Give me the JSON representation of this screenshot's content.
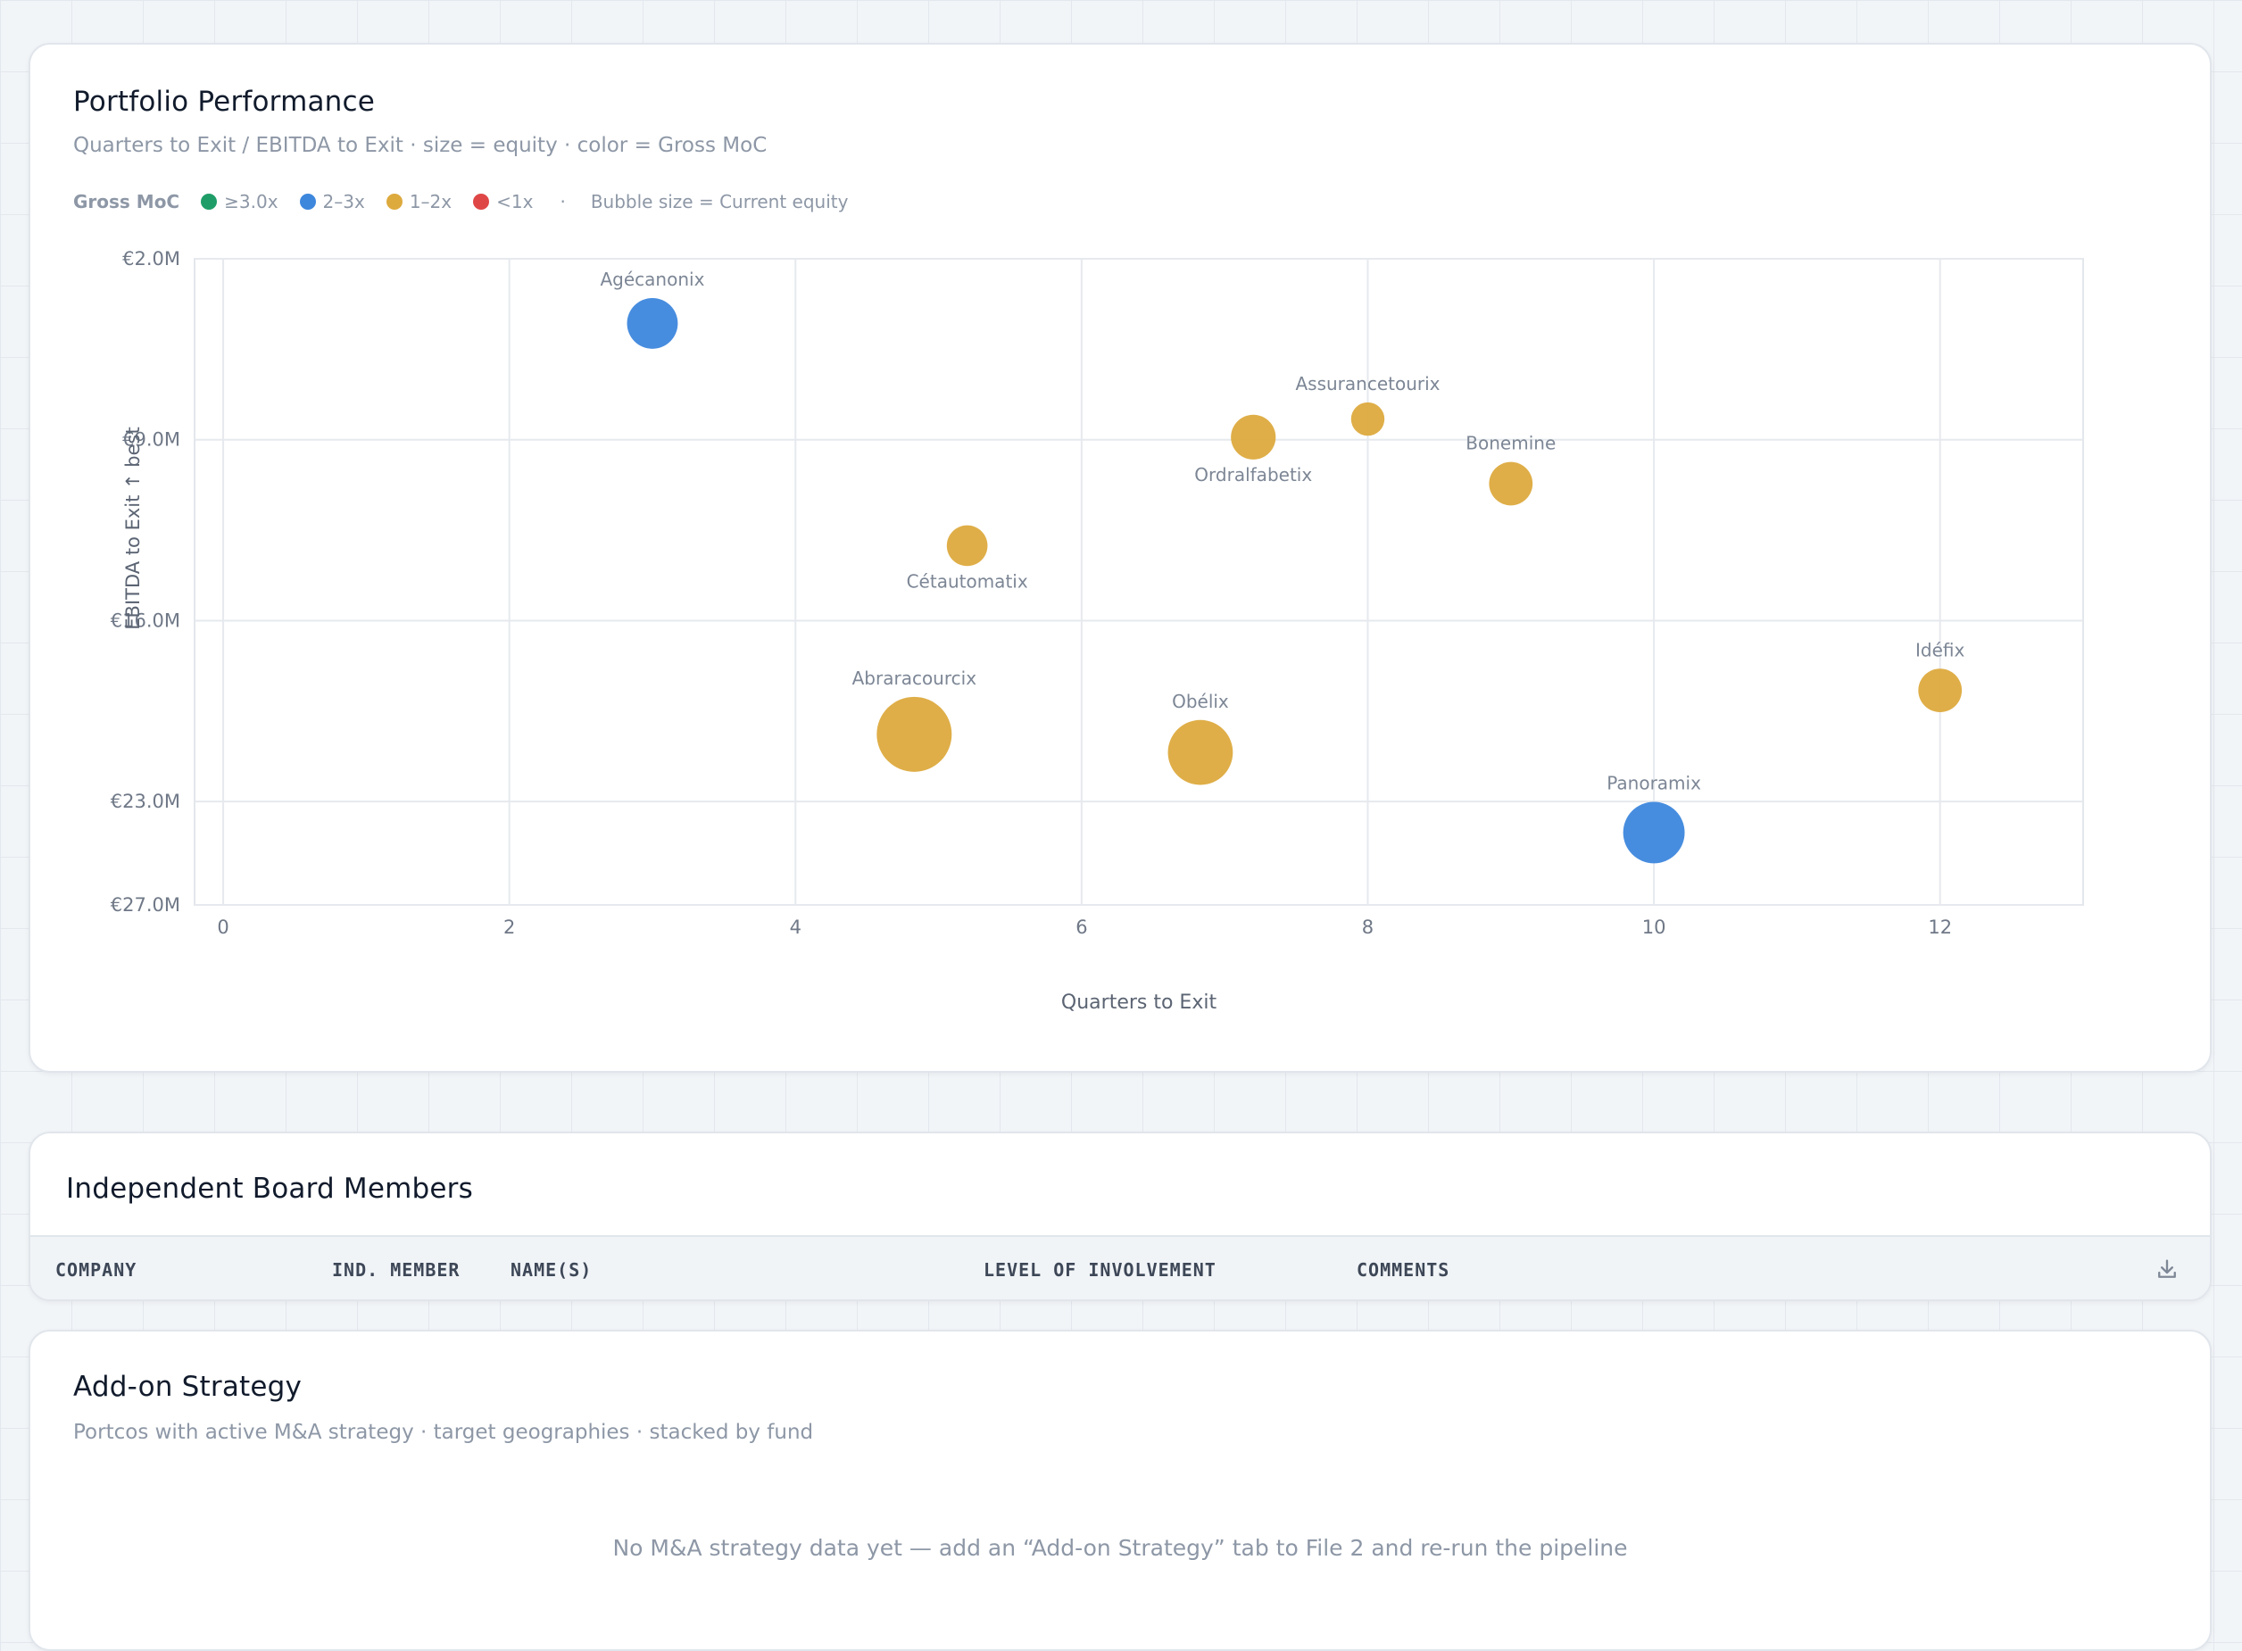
{
  "performance": {
    "title": "Portfolio Performance",
    "subtitle": "Quarters to Exit / EBITDA to Exit · size = equity · color = Gross MoC",
    "legend": {
      "title": "Gross MoC",
      "items": [
        {
          "label": "≥3.0x",
          "color": "#1f9d68"
        },
        {
          "label": "2–3x",
          "color": "#3d87dd"
        },
        {
          "label": "1–2x",
          "color": "#ddaa3e"
        },
        {
          "label": "<1x",
          "color": "#df4747"
        }
      ],
      "separator": "·",
      "size_note": "Bubble size = Current equity"
    }
  },
  "chart_data": {
    "type": "scatter",
    "xlabel": "Quarters to Exit",
    "ylabel": "EBITDA to Exit ↑ best",
    "xlim": [
      -0.2,
      13
    ],
    "ylim": [
      27,
      2
    ],
    "y_reversed": true,
    "x_ticks": [
      0,
      2,
      4,
      6,
      8,
      10,
      12
    ],
    "x_tick_labels": [
      "0",
      "2",
      "4",
      "6",
      "8",
      "10",
      "12"
    ],
    "y_ticks": [
      2,
      9,
      16,
      23,
      27
    ],
    "y_tick_labels": [
      "€2.0M",
      "€9.0M",
      "€16.0M",
      "€23.0M",
      "€27.0M"
    ],
    "grid": true,
    "size_encoding": "current equity",
    "color_encoding": "Gross MoC",
    "points": [
      {
        "label": "Agécanonix",
        "x": 3.0,
        "y": 4.5,
        "equity_rel": 0.3,
        "moc_bucket": "2–3x",
        "color": "#3d87dd",
        "label_pos": "above"
      },
      {
        "label": "Assurancetourix",
        "x": 8.0,
        "y": 8.2,
        "equity_rel": 0.05,
        "moc_bucket": "1–2x",
        "color": "#ddaa3e",
        "label_pos": "above"
      },
      {
        "label": "Ordralfabetix",
        "x": 7.2,
        "y": 8.9,
        "equity_rel": 0.19,
        "moc_bucket": "1–2x",
        "color": "#ddaa3e",
        "label_pos": "below"
      },
      {
        "label": "Bonemine",
        "x": 9.0,
        "y": 10.7,
        "equity_rel": 0.17,
        "moc_bucket": "1–2x",
        "color": "#ddaa3e",
        "label_pos": "above"
      },
      {
        "label": "Cétautomatix",
        "x": 5.2,
        "y": 13.1,
        "equity_rel": 0.13,
        "moc_bucket": "1–2x",
        "color": "#ddaa3e",
        "label_pos": "below"
      },
      {
        "label": "Abraracourcix",
        "x": 4.83,
        "y": 20.4,
        "equity_rel": 1.0,
        "moc_bucket": "1–2x",
        "color": "#ddaa3e",
        "label_pos": "above"
      },
      {
        "label": "Obélix",
        "x": 6.83,
        "y": 21.1,
        "equity_rel": 0.66,
        "moc_bucket": "1–2x",
        "color": "#ddaa3e",
        "label_pos": "above"
      },
      {
        "label": "Idéfix",
        "x": 12.0,
        "y": 18.7,
        "equity_rel": 0.17,
        "moc_bucket": "1–2x",
        "color": "#ddaa3e",
        "label_pos": "above"
      },
      {
        "label": "Panoramix",
        "x": 10.0,
        "y": 24.2,
        "equity_rel": 0.56,
        "moc_bucket": "2–3x",
        "color": "#3d87dd",
        "label_pos": "above"
      }
    ]
  },
  "board": {
    "title": "Independent Board Members",
    "columns": [
      "COMPANY",
      "IND. MEMBER",
      "NAME(S)",
      "LEVEL OF INVOLVEMENT",
      "COMMENTS"
    ],
    "download_icon": "download-icon"
  },
  "addon": {
    "title": "Add-on Strategy",
    "subtitle": "Portcos with active M&A strategy · target geographies · stacked by fund",
    "empty_message": "No M&A strategy data yet — add an “Add-on Strategy” tab to File 2 and re-run the pipeline"
  }
}
